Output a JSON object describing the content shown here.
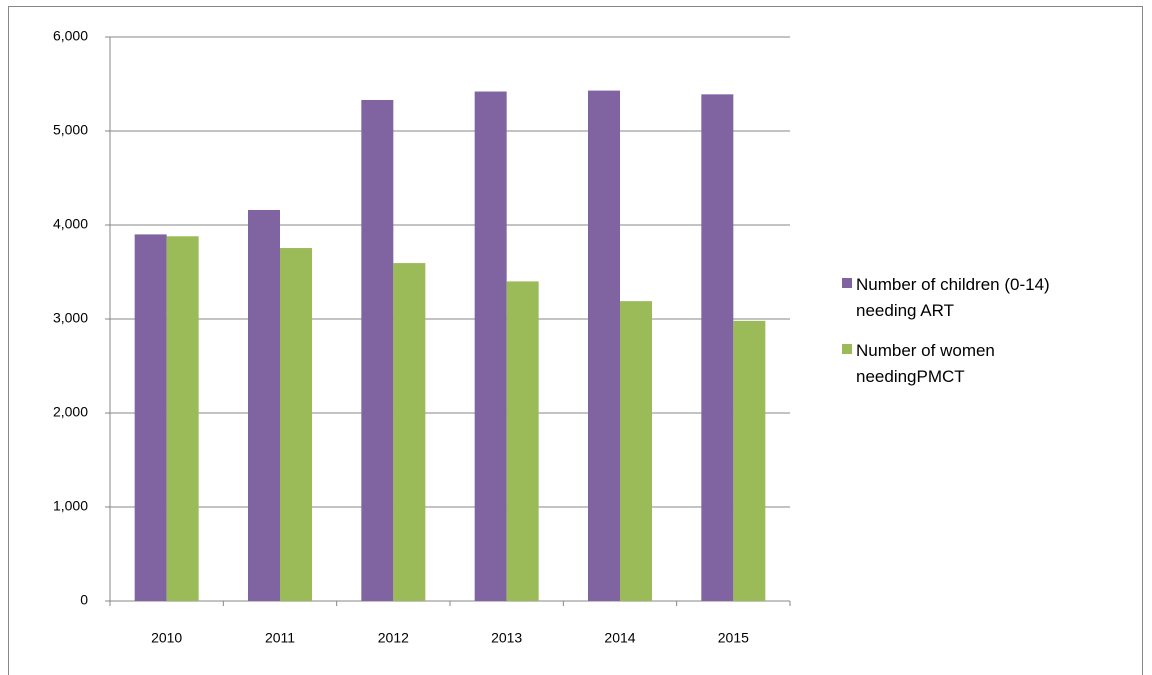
{
  "chart_data": {
    "type": "bar",
    "categories": [
      "2010",
      "2011",
      "2012",
      "2013",
      "2014",
      "2015"
    ],
    "series": [
      {
        "name": "Number of children (0-14) needing ART",
        "color": "#8064a2",
        "values": [
          3900,
          4160,
          5330,
          5420,
          5430,
          5390
        ]
      },
      {
        "name": "Number of women needingPMCT",
        "color": "#9bbb59",
        "values": [
          3880,
          3755,
          3595,
          3400,
          3190,
          2980
        ]
      }
    ],
    "ylim": [
      0,
      6000
    ],
    "yticks": [
      0,
      {
        "value": 1000,
        "label": "1,000"
      },
      {
        "value": 2000,
        "label": "2,000"
      },
      {
        "value": 3000,
        "label": "3,000"
      },
      {
        "value": 4000,
        "label": "4,000"
      },
      {
        "value": 5000,
        "label": "5,000"
      },
      {
        "value": 6000,
        "label": "6,000"
      }
    ],
    "grid": true,
    "legend": "right"
  }
}
